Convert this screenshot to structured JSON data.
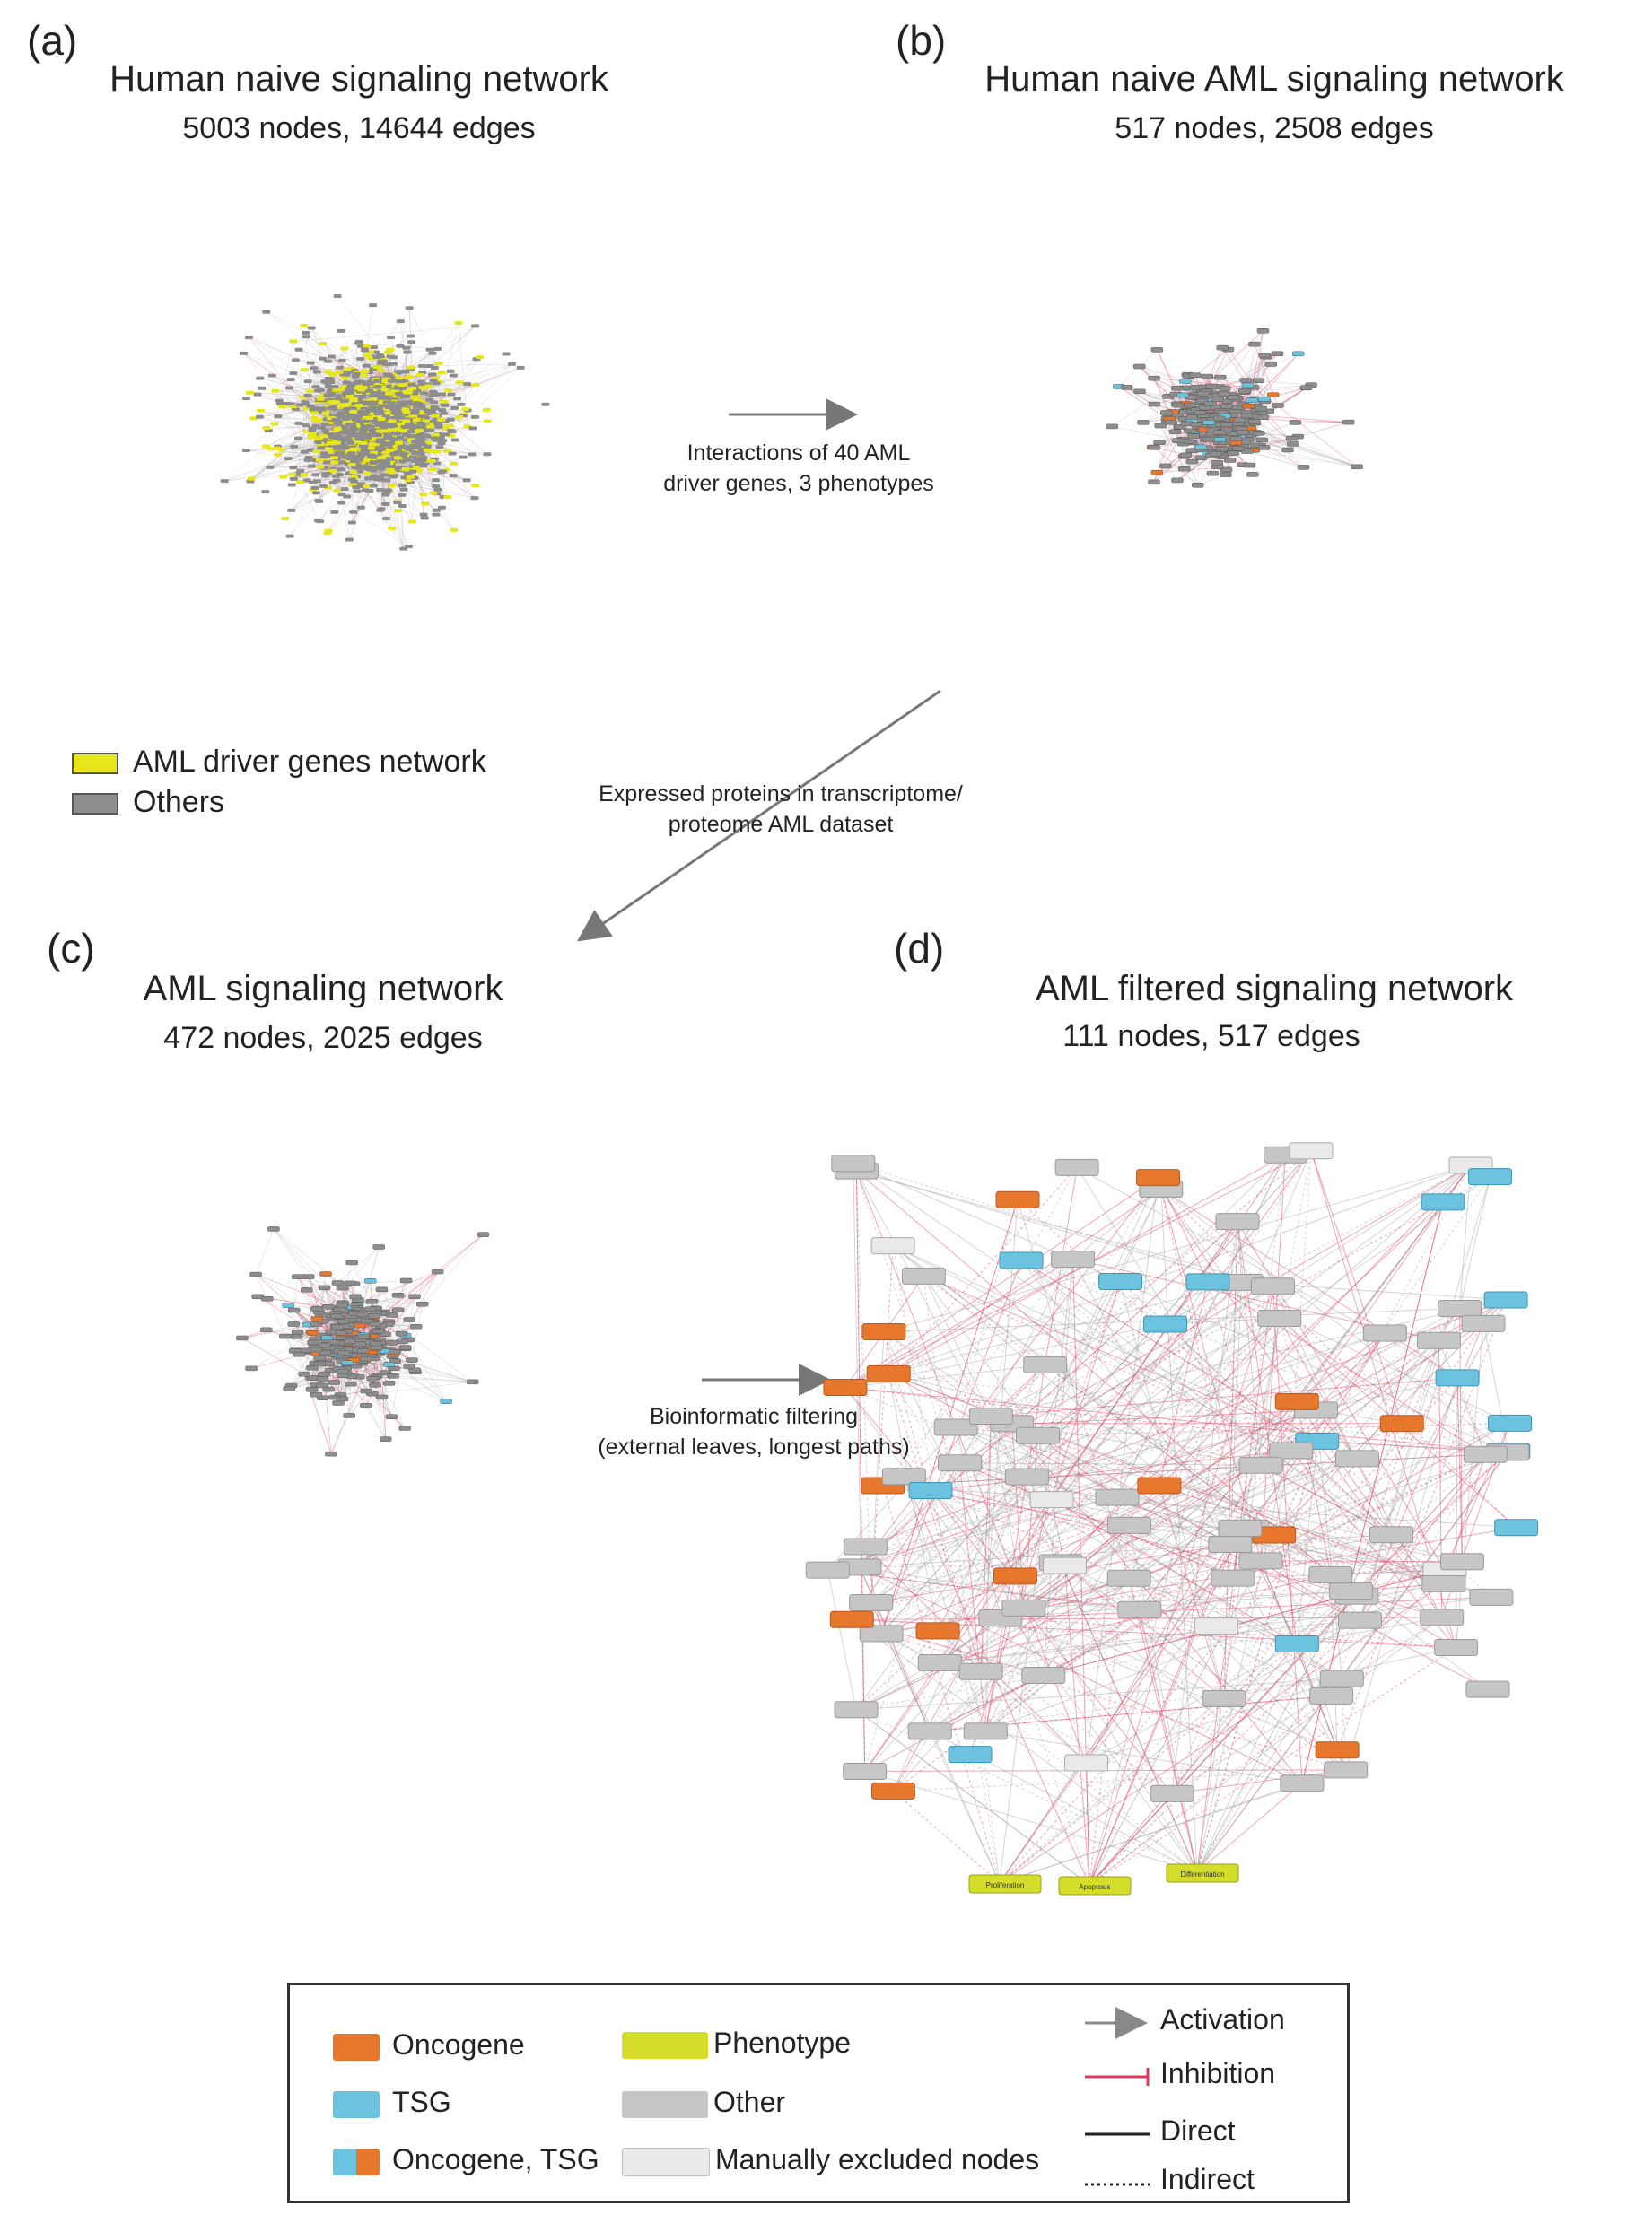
{
  "panels": {
    "a": {
      "letter": "(a)",
      "title": "Human naive signaling network",
      "subtitle": "5003 nodes, 14644 edges"
    },
    "b": {
      "letter": "(b)",
      "title": "Human naive AML signaling network",
      "subtitle": "517 nodes, 2508 edges"
    },
    "c": {
      "letter": "(c)",
      "title": "AML signaling network",
      "subtitle": "472 nodes, 2025 edges"
    },
    "d": {
      "letter": "(d)",
      "title": "AML filtered signaling network",
      "subtitle": "111 nodes, 517 edges"
    }
  },
  "panel_a_legend": {
    "driver_label": "AML driver genes network",
    "others_label": "Others"
  },
  "arrows": {
    "a_to_b": {
      "line1": "Interactions of 40 AML",
      "line2": "driver genes, 3 phenotypes"
    },
    "b_to_c": {
      "line1": "Expressed proteins in transcriptome/",
      "line2": "proteome AML dataset"
    },
    "c_to_d": {
      "line1": "Bioinformatic filtering",
      "line2": "(external leaves, longest paths)"
    }
  },
  "legend": {
    "oncogene": "Oncogene",
    "tsg": "TSG",
    "oncogene_tsg": "Oncogene, TSG",
    "phenotype": "Phenotype",
    "other": "Other",
    "excluded": "Manually excluded nodes",
    "activation": "Activation",
    "inhibition": "Inhibition",
    "direct": "Direct",
    "indirect": "Indirect"
  },
  "colors": {
    "oncogene": "#e8772e",
    "tsg": "#6cc3e0",
    "phenotype": "#d4dd2a",
    "other": "#c6c6c6",
    "excluded": "#e9e9e9",
    "driver": "#e6e61a",
    "node_gray": "#8d8d8d",
    "inhibition": "#e03a5a",
    "activation": "#888888"
  },
  "phenotypes": [
    "Proliferation",
    "Apoptosis",
    "Differentiation"
  ]
}
